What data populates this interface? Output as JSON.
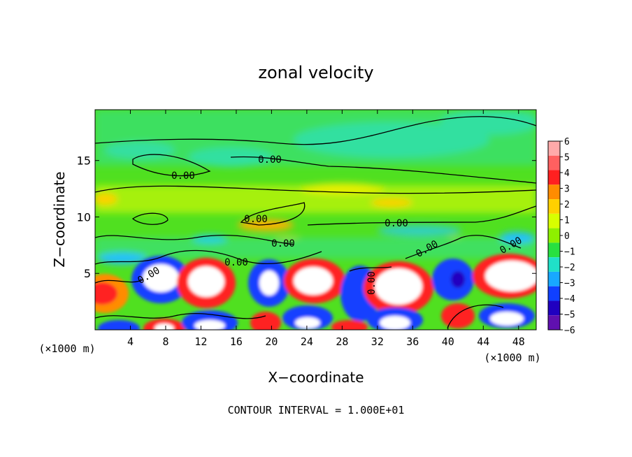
{
  "chart_data": {
    "type": "heatmap",
    "title": "zonal velocity",
    "xlabel": "X−coordinate",
    "ylabel": "Z−coordinate",
    "x_unit_left": "(×1000 m)",
    "x_unit_right": "(×1000 m)",
    "xlim": [
      0,
      50
    ],
    "ylim": [
      0,
      19.5
    ],
    "x_ticks": [
      4,
      8,
      12,
      16,
      20,
      24,
      28,
      32,
      36,
      40,
      44,
      48
    ],
    "y_ticks": [
      5,
      10,
      15
    ],
    "colorbar": {
      "levels": [
        6,
        5,
        4,
        3,
        2,
        1,
        0,
        -1,
        -2,
        -3,
        -4,
        -5,
        -6
      ],
      "labels": [
        "6",
        "5",
        "4",
        "3",
        "2",
        "1",
        "0",
        "−1",
        "−2",
        "−3",
        "−4",
        "−5",
        "−6"
      ],
      "colors": [
        "#ffaaaa",
        "#ff6060",
        "#ff2020",
        "#ff8c00",
        "#ffd000",
        "#d8ff00",
        "#8ef000",
        "#28e040",
        "#20e0c8",
        "#18a8ff",
        "#1040ff",
        "#2000c0",
        "#6010b0"
      ]
    },
    "contour_labels": [
      "0.00",
      "0.00",
      "0.00",
      "0.00",
      "0.00",
      "0.00",
      "0.00",
      "0.00",
      "0.00",
      "0.00"
    ],
    "grid": false,
    "footer": "CONTOUR INTERVAL = 1.000E+01"
  }
}
